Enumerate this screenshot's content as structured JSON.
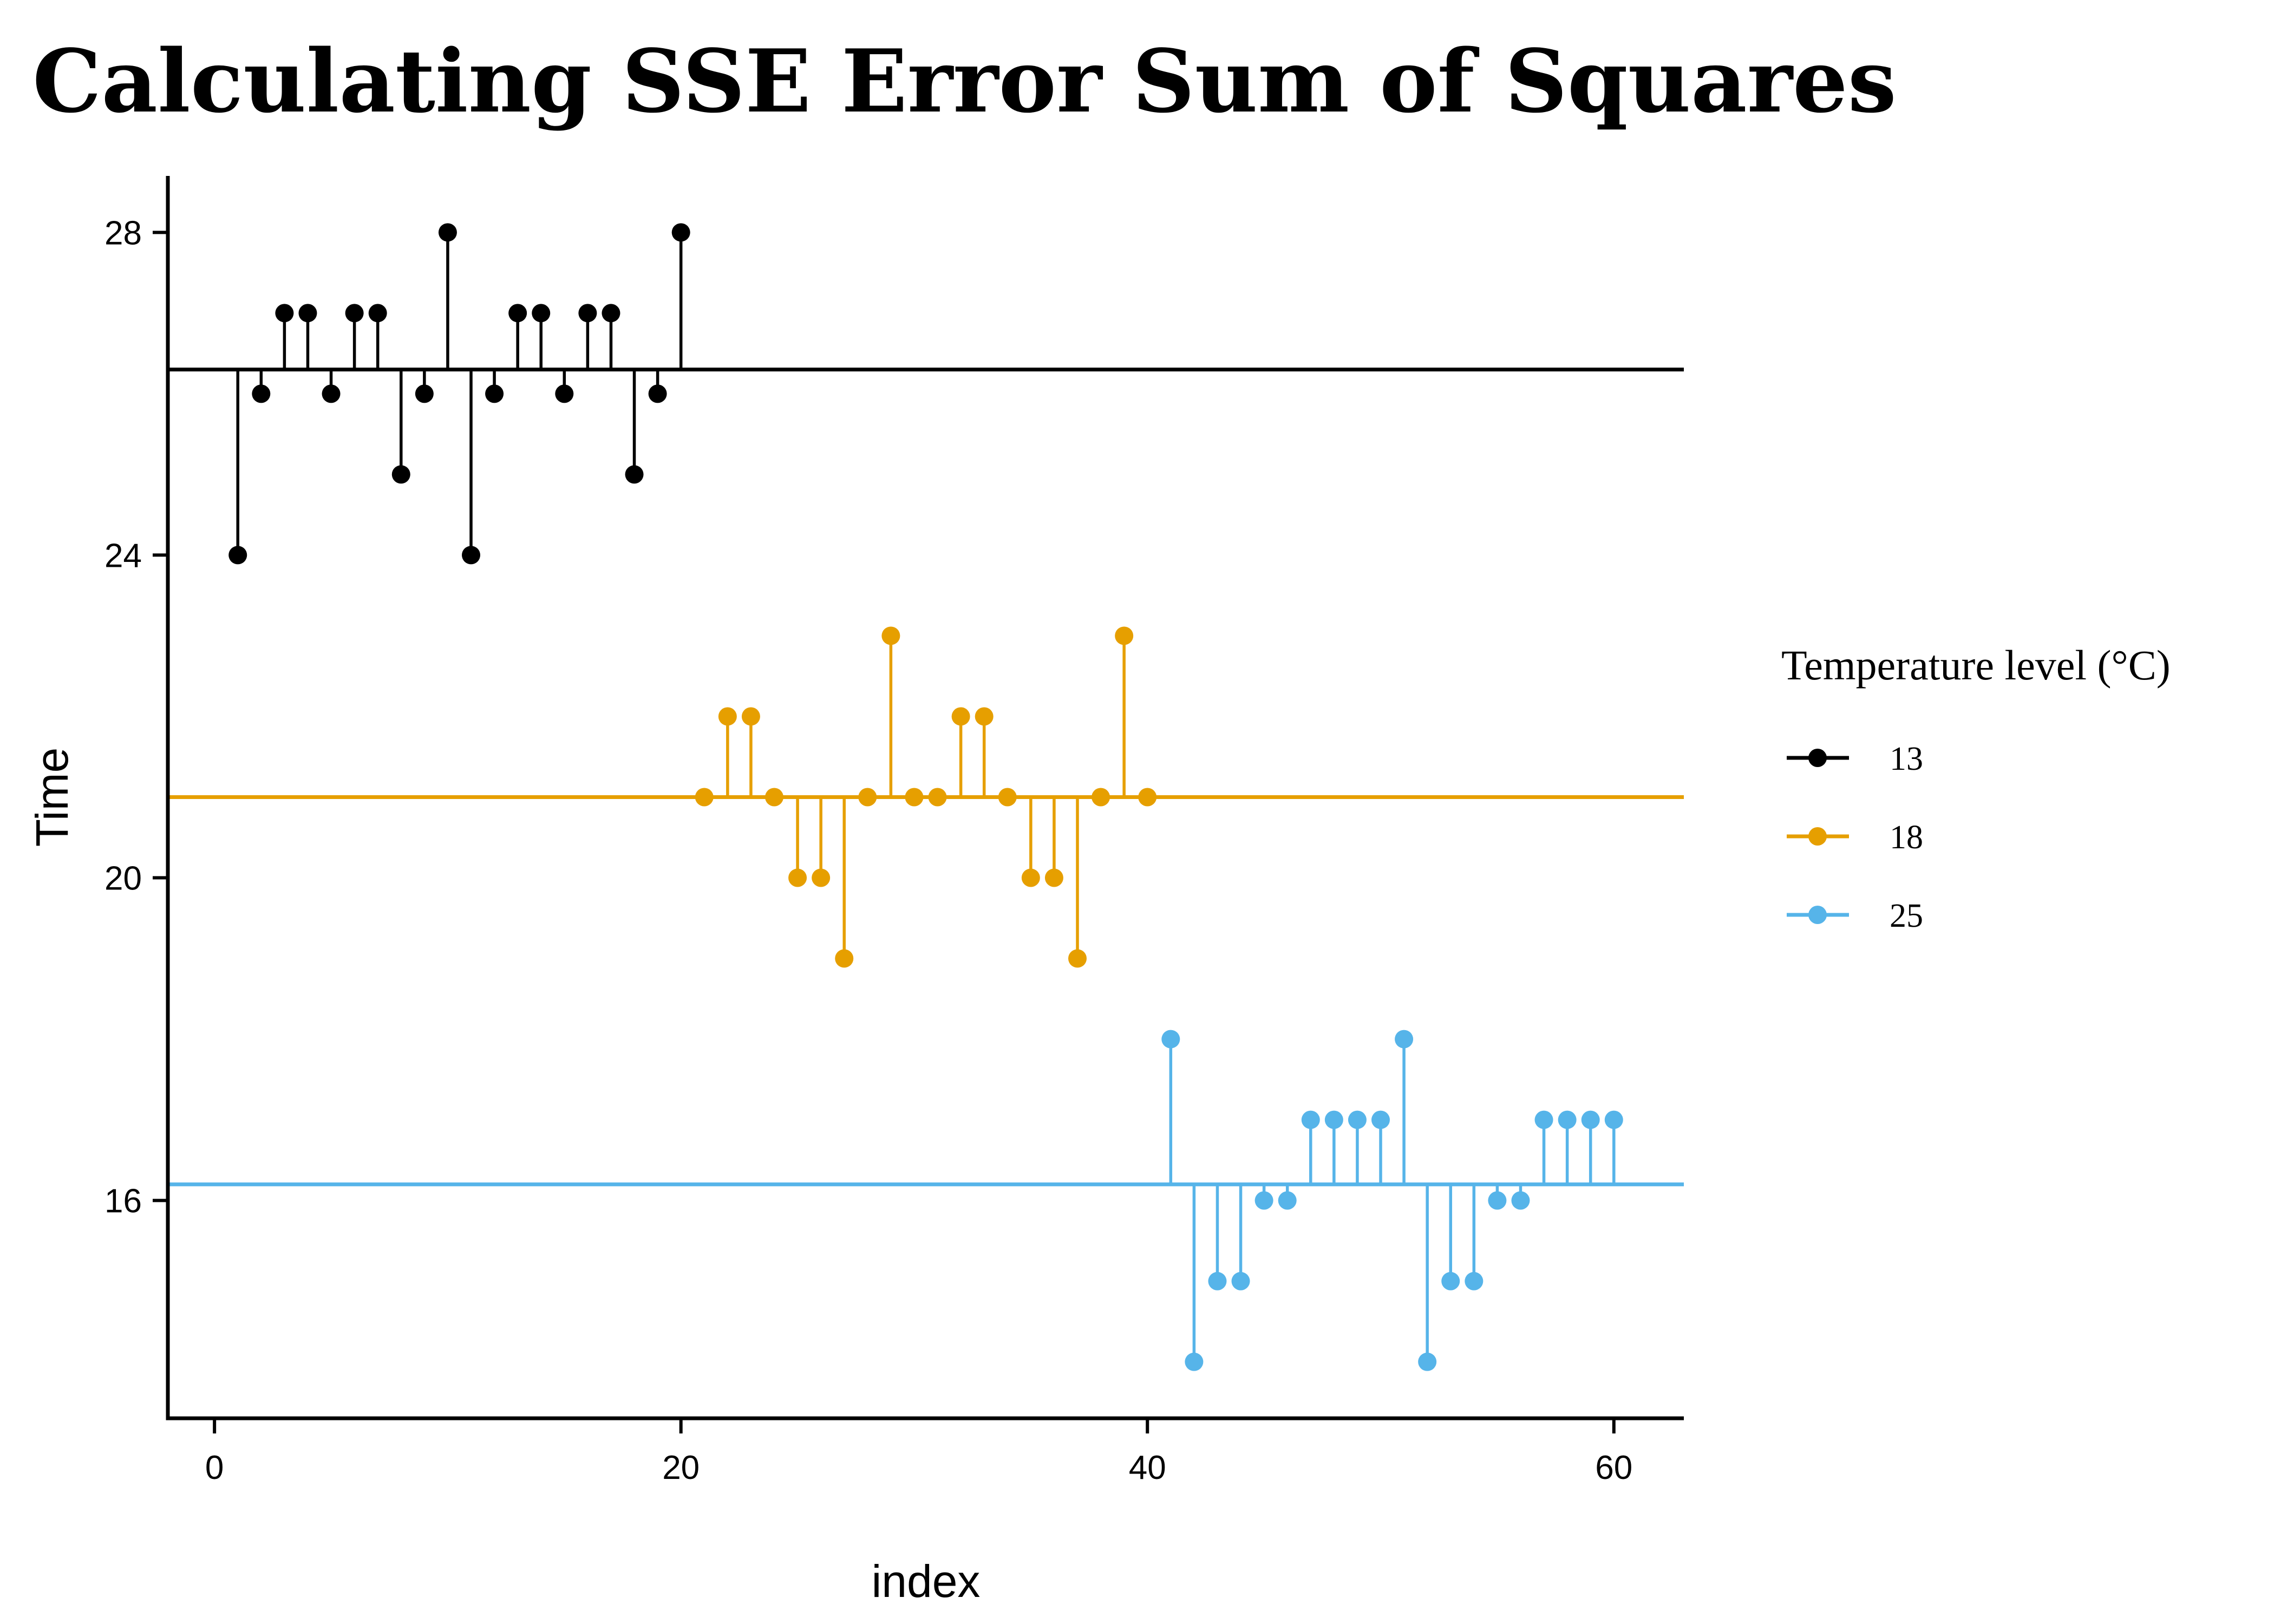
{
  "chart_data": {
    "type": "scatter",
    "title": "Calculating SSE Error Sum of Squares",
    "xlabel": "index",
    "ylabel": "Time",
    "xlim": [
      -2,
      63
    ],
    "ylim": [
      13.3,
      28.7
    ],
    "xticks": [
      0,
      20,
      40,
      60
    ],
    "yticks": [
      16,
      20,
      24,
      28
    ],
    "grid": false,
    "legend": {
      "title": "Temperature level (°C)",
      "position": "right"
    },
    "series": [
      {
        "name": "13",
        "color": "#000000",
        "mean": 26.3,
        "x": [
          1,
          2,
          3,
          4,
          5,
          6,
          7,
          8,
          9,
          10,
          11,
          12,
          13,
          14,
          15,
          16,
          17,
          18,
          19,
          20
        ],
        "y": [
          24,
          26,
          27,
          27,
          26,
          27,
          27,
          25,
          26,
          28,
          24,
          26,
          27,
          27,
          26,
          27,
          27,
          25,
          26,
          28
        ]
      },
      {
        "name": "18",
        "color": "#E69F00",
        "mean": 21,
        "x": [
          21,
          22,
          23,
          24,
          25,
          26,
          27,
          28,
          29,
          30,
          31,
          32,
          33,
          34,
          35,
          36,
          37,
          38,
          39,
          40
        ],
        "y": [
          21,
          22,
          22,
          21,
          20,
          20,
          19,
          21,
          23,
          21,
          21,
          22,
          22,
          21,
          20,
          20,
          19,
          21,
          23,
          21
        ]
      },
      {
        "name": "25",
        "color": "#56B4E9",
        "mean": 16.2,
        "x": [
          41,
          42,
          43,
          44,
          45,
          46,
          47,
          48,
          49,
          50,
          51,
          52,
          53,
          54,
          55,
          56,
          57,
          58,
          59,
          60
        ],
        "y": [
          18,
          14,
          15,
          15,
          16,
          16,
          17,
          17,
          17,
          17,
          18,
          14,
          15,
          15,
          16,
          16,
          17,
          17,
          17,
          17
        ]
      }
    ]
  }
}
